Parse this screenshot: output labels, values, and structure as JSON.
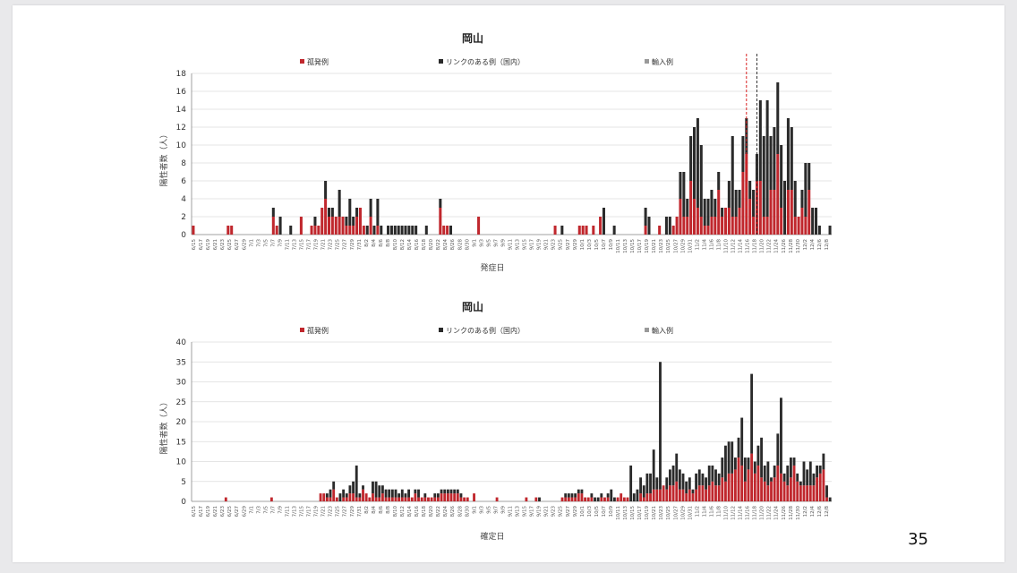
{
  "page_number": "35",
  "colors": {
    "isolated": "#c0272d",
    "linked": "#2a2a2a",
    "imported": "#9a9a9a",
    "grid": "#dcdcdc",
    "axis": "#888888",
    "ref_red": "#d82020",
    "ref_black": "#333333"
  },
  "chart_data": [
    {
      "type": "bar",
      "stacked": true,
      "title": "岡山",
      "xlabel": "発症日",
      "ylabel": "陽性者数（人）",
      "ylim": [
        0,
        18
      ],
      "yticks": [
        0,
        2,
        4,
        6,
        8,
        10,
        12,
        14,
        16,
        18
      ],
      "legend": [
        "孤発例",
        "リンクのある例（国内）",
        "輸入例"
      ],
      "grid": true,
      "tick_labels": [
        "6/15",
        "6/17",
        "6/19",
        "6/21",
        "6/23",
        "6/25",
        "6/27",
        "6/29",
        "7/1",
        "7/3",
        "7/5",
        "7/7",
        "7/9",
        "7/11",
        "7/13",
        "7/15",
        "7/17",
        "7/19",
        "7/21",
        "7/23",
        "7/25",
        "7/27",
        "7/29",
        "7/31",
        "8/2",
        "8/4",
        "8/6",
        "8/8",
        "8/10",
        "8/12",
        "8/14",
        "8/16",
        "8/18",
        "8/20",
        "8/22",
        "8/24",
        "8/26",
        "8/28",
        "8/30",
        "9/1",
        "9/3",
        "9/5",
        "9/7",
        "9/9",
        "9/11",
        "9/13",
        "9/15",
        "9/17",
        "9/19",
        "9/21",
        "9/23",
        "9/25",
        "9/27",
        "9/29",
        "10/1",
        "10/3",
        "10/5",
        "10/7",
        "10/9",
        "10/11",
        "10/13",
        "10/15",
        "10/17",
        "10/19",
        "10/21",
        "10/23",
        "10/25",
        "10/27",
        "10/29",
        "10/31",
        "11/2",
        "11/4",
        "11/6",
        "11/8",
        "11/10",
        "11/12",
        "11/14",
        "11/16",
        "11/18",
        "11/20",
        "11/22",
        "11/24",
        "11/26",
        "11/28",
        "11/30",
        "12/2",
        "12/4",
        "12/6",
        "12/8"
      ],
      "ref_lines": [
        {
          "index": 159,
          "color": "red"
        },
        {
          "index": 162,
          "color": "black"
        }
      ],
      "series": [
        {
          "name": "孤発例",
          "values": [
            1,
            0,
            0,
            0,
            0,
            0,
            0,
            0,
            0,
            0,
            1,
            1,
            0,
            0,
            0,
            0,
            0,
            0,
            0,
            0,
            0,
            0,
            0,
            2,
            1,
            0,
            0,
            0,
            0,
            0,
            0,
            2,
            0,
            0,
            1,
            1,
            1,
            3,
            4,
            2,
            2,
            2,
            2,
            2,
            1,
            1,
            1,
            2,
            3,
            1,
            0,
            2,
            0,
            1,
            0,
            0,
            0,
            0,
            0,
            0,
            0,
            0,
            0,
            0,
            0,
            0,
            0,
            0,
            0,
            0,
            0,
            3,
            1,
            1,
            0,
            0,
            0,
            0,
            0,
            0,
            0,
            0,
            2,
            0,
            0,
            0,
            0,
            0,
            0,
            0,
            0,
            0,
            0,
            0,
            0,
            0,
            0,
            0,
            0,
            0,
            0,
            0,
            0,
            0,
            1,
            0,
            0,
            0,
            0,
            0,
            0,
            1,
            1,
            1,
            0,
            1,
            0,
            2,
            0,
            0,
            0,
            0,
            0,
            0,
            0,
            0,
            0,
            0,
            0,
            0,
            1,
            0,
            0,
            0,
            1,
            0,
            0,
            0,
            1,
            2,
            4,
            2,
            2,
            6,
            4,
            3,
            2,
            1,
            1,
            2,
            2,
            5,
            2,
            3,
            3,
            2,
            2,
            3,
            7,
            9,
            4,
            2,
            6,
            6,
            2,
            2,
            5,
            5,
            9,
            3,
            0,
            5,
            5,
            2,
            2,
            3,
            2,
            5,
            0
          ],
          "note": "approximate values read from the figure"
        },
        {
          "name": "リンクのある例（国内）",
          "values": [
            0,
            0,
            0,
            0,
            0,
            0,
            0,
            0,
            0,
            0,
            0,
            0,
            0,
            0,
            0,
            0,
            0,
            0,
            0,
            0,
            0,
            0,
            0,
            1,
            0,
            2,
            0,
            0,
            1,
            0,
            0,
            0,
            0,
            0,
            0,
            1,
            0,
            0,
            2,
            1,
            1,
            0,
            3,
            0,
            1,
            3,
            1,
            1,
            0,
            0,
            1,
            2,
            1,
            3,
            1,
            0,
            1,
            1,
            1,
            1,
            1,
            1,
            1,
            1,
            1,
            0,
            0,
            1,
            0,
            0,
            0,
            1,
            0,
            0,
            1,
            0,
            0,
            0,
            0,
            0,
            0,
            0,
            0,
            0,
            0,
            0,
            0,
            0,
            0,
            0,
            0,
            0,
            0,
            0,
            0,
            0,
            0,
            0,
            0,
            0,
            0,
            0,
            0,
            0,
            0,
            0,
            1,
            0,
            0,
            0,
            0,
            0,
            0,
            0,
            0,
            0,
            0,
            0,
            3,
            0,
            0,
            1,
            0,
            0,
            0,
            0,
            0,
            0,
            0,
            0,
            2,
            2,
            0,
            0,
            0,
            0,
            2,
            2,
            0,
            0,
            3,
            5,
            2,
            5,
            8,
            10,
            8,
            3,
            3,
            3,
            2,
            2,
            1,
            0,
            3,
            9,
            3,
            2,
            4,
            4,
            2,
            3,
            3,
            9,
            9,
            13,
            6,
            7,
            8,
            7,
            6,
            8,
            7,
            4,
            0,
            2,
            6,
            3,
            3,
            3,
            1,
            0,
            0,
            1
          ]
        },
        {
          "name": "輸入例",
          "values": []
        }
      ]
    },
    {
      "type": "bar",
      "stacked": true,
      "title": "岡山",
      "xlabel": "確定日",
      "ylabel": "陽性者数（人）",
      "ylim": [
        0,
        40
      ],
      "yticks": [
        0,
        5,
        10,
        15,
        20,
        25,
        30,
        35,
        40
      ],
      "legend": [
        "孤発例",
        "リンクのある例（国内）",
        "輸入例"
      ],
      "grid": true,
      "tick_labels": [
        "6/15",
        "6/17",
        "6/19",
        "6/21",
        "6/23",
        "6/25",
        "6/27",
        "6/29",
        "7/1",
        "7/3",
        "7/5",
        "7/7",
        "7/9",
        "7/11",
        "7/13",
        "7/15",
        "7/17",
        "7/19",
        "7/21",
        "7/23",
        "7/25",
        "7/27",
        "7/29",
        "7/31",
        "8/2",
        "8/4",
        "8/6",
        "8/8",
        "8/10",
        "8/12",
        "8/14",
        "8/16",
        "8/18",
        "8/20",
        "8/22",
        "8/24",
        "8/26",
        "8/28",
        "8/30",
        "9/1",
        "9/3",
        "9/5",
        "9/7",
        "9/9",
        "9/11",
        "9/13",
        "9/15",
        "9/17",
        "9/19",
        "9/21",
        "9/23",
        "9/25",
        "9/27",
        "9/29",
        "10/1",
        "10/3",
        "10/5",
        "10/7",
        "10/9",
        "10/11",
        "10/13",
        "10/15",
        "10/17",
        "10/19",
        "10/21",
        "10/23",
        "10/25",
        "10/27",
        "10/29",
        "10/31",
        "11/2",
        "11/4",
        "11/6",
        "11/8",
        "11/10",
        "11/12",
        "11/14",
        "11/16",
        "11/18",
        "11/20",
        "11/22",
        "11/24",
        "11/26",
        "11/28",
        "11/30",
        "12/2",
        "12/4",
        "12/6",
        "12/8"
      ],
      "series": [
        {
          "name": "孤発例",
          "values": [
            0,
            0,
            0,
            0,
            0,
            0,
            0,
            0,
            0,
            0,
            1,
            0,
            0,
            0,
            0,
            0,
            0,
            0,
            0,
            0,
            0,
            0,
            0,
            0,
            1,
            0,
            0,
            0,
            0,
            0,
            0,
            0,
            0,
            0,
            0,
            0,
            0,
            0,
            0,
            2,
            2,
            1,
            1,
            3,
            1,
            0,
            1,
            1,
            2,
            2,
            1,
            1,
            3,
            2,
            1,
            2,
            1,
            1,
            2,
            1,
            1,
            1,
            1,
            1,
            1,
            1,
            1,
            1,
            2,
            1,
            1,
            1,
            1,
            1,
            1,
            1,
            2,
            2,
            2,
            2,
            2,
            2,
            1,
            1,
            1,
            0,
            2,
            0,
            0,
            0,
            0,
            0,
            0,
            1,
            0,
            0,
            0,
            0,
            0,
            0,
            0,
            0,
            1,
            0,
            0,
            1,
            0,
            0,
            0,
            0,
            0,
            0,
            0,
            1,
            1,
            1,
            1,
            1,
            2,
            2,
            1,
            1,
            1,
            0,
            0,
            1,
            1,
            1,
            0,
            0,
            1,
            2,
            1,
            1,
            0,
            0,
            0,
            2,
            1,
            2,
            2,
            3,
            3,
            3,
            4,
            3,
            4,
            4,
            5,
            3,
            3,
            2,
            3,
            2,
            3,
            4,
            4,
            3,
            4,
            5,
            4,
            4,
            6,
            5,
            7,
            7,
            8,
            11,
            9,
            5,
            8,
            12,
            7,
            9,
            6,
            5,
            4,
            5,
            6,
            9,
            7,
            5,
            4,
            6,
            9,
            5,
            4,
            4,
            4,
            4,
            4,
            6,
            7,
            8,
            1
          ],
          "note": "approximate values read from the figure"
        },
        {
          "name": "リンクのある例（国内）",
          "values": [
            0,
            0,
            0,
            0,
            0,
            0,
            0,
            0,
            0,
            0,
            0,
            0,
            0,
            0,
            0,
            0,
            0,
            0,
            0,
            0,
            0,
            0,
            0,
            0,
            0,
            0,
            0,
            0,
            0,
            0,
            0,
            0,
            0,
            0,
            0,
            0,
            0,
            0,
            0,
            0,
            0,
            1,
            2,
            2,
            0,
            2,
            2,
            1,
            2,
            3,
            8,
            1,
            1,
            0,
            0,
            3,
            4,
            3,
            2,
            2,
            2,
            2,
            2,
            1,
            2,
            1,
            2,
            0,
            1,
            2,
            0,
            1,
            0,
            0,
            1,
            1,
            1,
            1,
            1,
            1,
            1,
            1,
            1,
            0,
            0,
            0,
            0,
            0,
            0,
            0,
            0,
            0,
            0,
            0,
            0,
            0,
            0,
            0,
            0,
            0,
            0,
            0,
            0,
            0,
            0,
            0,
            1,
            0,
            0,
            0,
            0,
            0,
            0,
            0,
            1,
            1,
            1,
            1,
            1,
            1,
            0,
            0,
            1,
            1,
            1,
            1,
            0,
            1,
            3,
            1,
            0,
            0,
            0,
            0,
            9,
            2,
            3,
            4,
            3,
            5,
            5,
            10,
            3,
            32,
            0,
            3,
            4,
            5,
            7,
            5,
            4,
            3,
            3,
            1,
            4,
            4,
            3,
            3,
            5,
            4,
            4,
            3,
            5,
            9,
            8,
            8,
            3,
            5,
            12,
            6,
            3,
            20,
            3,
            5,
            10,
            4,
            6,
            1,
            3,
            8,
            19,
            2,
            5,
            5,
            2,
            2,
            1,
            6,
            4,
            6,
            3,
            3,
            2,
            4,
            3,
            1
          ]
        },
        {
          "name": "輸入例",
          "values": []
        }
      ]
    }
  ]
}
